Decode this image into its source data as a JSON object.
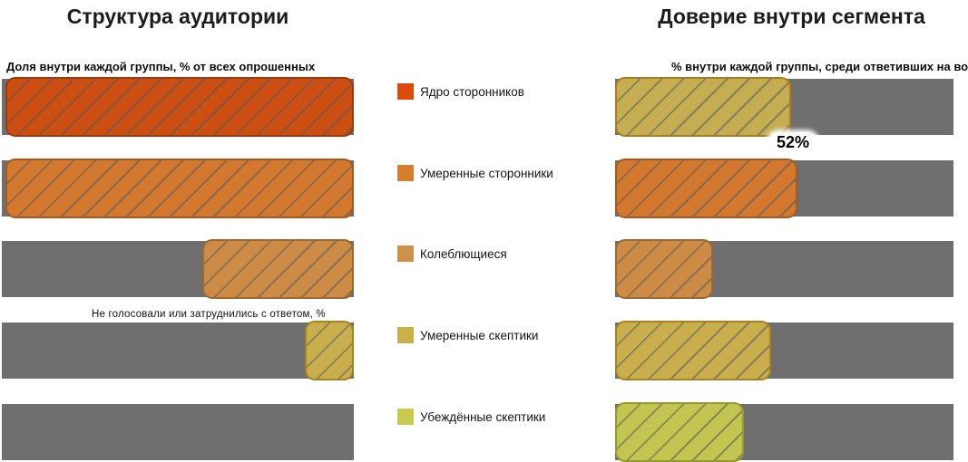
{
  "titles": {
    "left": "Структура аудитории",
    "right": "Доверие внутри сегмента"
  },
  "subtitles": {
    "left": "Доля внутри каждой группы, % от всех опрошенных",
    "right": "% внутри каждой группы, среди ответивших на вопрос"
  },
  "section_note": "Не голосовали или затруднились с ответом, %",
  "annotation": {
    "text": "52%",
    "row_index": 0,
    "panel": "right"
  },
  "categories": [
    {
      "label": "Ядро сторонников",
      "legend_color": "#DC4B0D"
    },
    {
      "label": "Умеренные сторонники",
      "legend_color": "#D67E2F"
    },
    {
      "label": "Колеблющиеся",
      "legend_color": "#CF9048"
    },
    {
      "label": "Умеренные скептики",
      "legend_color": "#CBB04A"
    },
    {
      "label": "Убеждённые скептики",
      "legend_color": "#C9CB4E"
    }
  ],
  "chart_data": [
    {
      "type": "bar",
      "orientation": "horizontal",
      "panel": "left",
      "title": "Структура аудитории",
      "categories": [
        "Ядро сторонников",
        "Умеренные сторонники",
        "Колеблющиеся",
        "Умеренные скептики",
        "Убеждённые скептики"
      ],
      "values": [
        99,
        99,
        43,
        14,
        0
      ],
      "unit": "%",
      "xlim": [
        0,
        100
      ],
      "axis_reversed": true,
      "bar_colors": [
        "#CB4E13",
        "#D2792F",
        "#CD8C46",
        "#C9AE4D",
        null
      ],
      "border_colors": [
        "#9E3B0A",
        "#A25A1D",
        "#9C6A30",
        "#A5831E",
        null
      ],
      "track_color": "#6F6F6F",
      "hatch": "/",
      "grid": false,
      "legend_position": "middle-column"
    },
    {
      "type": "bar",
      "orientation": "horizontal",
      "panel": "right",
      "title": "Доверие внутри сегмента",
      "categories": [
        "Ядро сторонников",
        "Умеренные сторонники",
        "Колеблющиеся",
        "Умеренные скептики",
        "Убеждённые скептики"
      ],
      "values": [
        52,
        54,
        29,
        46,
        38
      ],
      "unit": "%",
      "xlim": [
        0,
        100
      ],
      "axis_reversed": false,
      "bar_colors": [
        "#C5AE52",
        "#D2792F",
        "#CD8C46",
        "#C9AE4D",
        "#C3C551"
      ],
      "border_colors": [
        "#B07A1E",
        "#A25A1D",
        "#9C6A30",
        "#A5831E",
        "#949A30"
      ],
      "track_color": "#6F6F6F",
      "hatch": "/",
      "grid": false,
      "data_labels": {
        "0": "52%"
      }
    }
  ],
  "colors": {
    "track_gray": "#6F6F6F",
    "hatch_line": "#585858",
    "text_dark": "#1a1a1a",
    "bubble_bg": "#ffffff"
  }
}
